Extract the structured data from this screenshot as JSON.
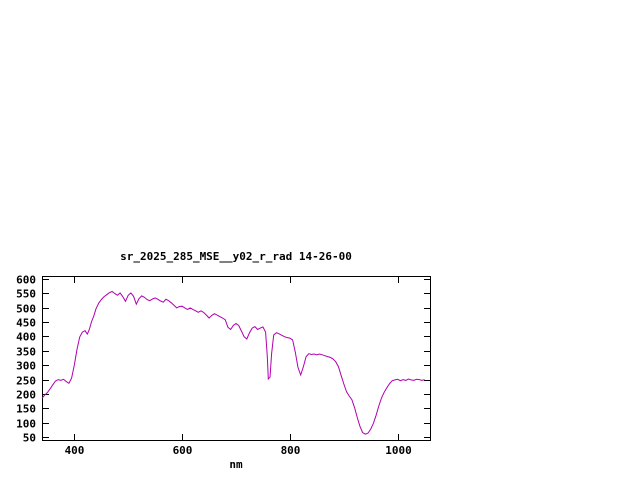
{
  "window": {
    "background_color": "#ffffff"
  },
  "chart_data": {
    "type": "line",
    "title": "sr_2025_285_MSE__y02_r_rad 14-26-00",
    "xlabel": "nm",
    "ylabel": "",
    "xlim": [
      340,
      1060
    ],
    "ylim": [
      40,
      610
    ],
    "xticks": [
      400,
      600,
      800,
      1000
    ],
    "yticks": [
      50,
      100,
      150,
      200,
      250,
      300,
      350,
      400,
      450,
      500,
      550,
      600
    ],
    "grid": false,
    "legend": "none",
    "line_color": "#b000b0",
    "axis_color": "#000000",
    "points": [
      [
        340,
        185
      ],
      [
        345,
        196
      ],
      [
        350,
        205
      ],
      [
        355,
        218
      ],
      [
        360,
        232
      ],
      [
        365,
        245
      ],
      [
        370,
        250
      ],
      [
        375,
        247
      ],
      [
        380,
        251
      ],
      [
        385,
        243
      ],
      [
        390,
        237
      ],
      [
        395,
        255
      ],
      [
        400,
        300
      ],
      [
        405,
        355
      ],
      [
        410,
        398
      ],
      [
        415,
        415
      ],
      [
        420,
        420
      ],
      [
        424,
        408
      ],
      [
        428,
        425
      ],
      [
        432,
        452
      ],
      [
        436,
        470
      ],
      [
        440,
        495
      ],
      [
        445,
        515
      ],
      [
        450,
        528
      ],
      [
        455,
        538
      ],
      [
        460,
        545
      ],
      [
        465,
        552
      ],
      [
        470,
        556
      ],
      [
        475,
        549
      ],
      [
        480,
        543
      ],
      [
        485,
        551
      ],
      [
        490,
        538
      ],
      [
        495,
        522
      ],
      [
        500,
        543
      ],
      [
        505,
        551
      ],
      [
        510,
        539
      ],
      [
        515,
        512
      ],
      [
        520,
        531
      ],
      [
        525,
        541
      ],
      [
        530,
        536
      ],
      [
        535,
        528
      ],
      [
        540,
        524
      ],
      [
        545,
        530
      ],
      [
        550,
        534
      ],
      [
        555,
        529
      ],
      [
        560,
        523
      ],
      [
        565,
        519
      ],
      [
        570,
        529
      ],
      [
        575,
        524
      ],
      [
        580,
        517
      ],
      [
        585,
        508
      ],
      [
        590,
        499
      ],
      [
        595,
        504
      ],
      [
        600,
        505
      ],
      [
        605,
        499
      ],
      [
        610,
        494
      ],
      [
        615,
        499
      ],
      [
        620,
        494
      ],
      [
        625,
        489
      ],
      [
        630,
        484
      ],
      [
        635,
        489
      ],
      [
        640,
        483
      ],
      [
        645,
        474
      ],
      [
        650,
        464
      ],
      [
        655,
        473
      ],
      [
        660,
        479
      ],
      [
        665,
        474
      ],
      [
        670,
        469
      ],
      [
        675,
        464
      ],
      [
        680,
        458
      ],
      [
        685,
        432
      ],
      [
        690,
        424
      ],
      [
        695,
        438
      ],
      [
        700,
        445
      ],
      [
        705,
        438
      ],
      [
        710,
        419
      ],
      [
        715,
        399
      ],
      [
        720,
        391
      ],
      [
        725,
        413
      ],
      [
        730,
        429
      ],
      [
        735,
        434
      ],
      [
        740,
        424
      ],
      [
        745,
        429
      ],
      [
        750,
        433
      ],
      [
        755,
        415
      ],
      [
        758,
        330
      ],
      [
        760,
        252
      ],
      [
        763,
        258
      ],
      [
        766,
        340
      ],
      [
        770,
        405
      ],
      [
        775,
        413
      ],
      [
        780,
        409
      ],
      [
        785,
        404
      ],
      [
        790,
        399
      ],
      [
        795,
        396
      ],
      [
        800,
        394
      ],
      [
        805,
        388
      ],
      [
        810,
        345
      ],
      [
        815,
        292
      ],
      [
        820,
        266
      ],
      [
        825,
        295
      ],
      [
        830,
        330
      ],
      [
        835,
        340
      ],
      [
        840,
        337
      ],
      [
        845,
        339
      ],
      [
        850,
        336
      ],
      [
        855,
        339
      ],
      [
        860,
        336
      ],
      [
        865,
        333
      ],
      [
        870,
        330
      ],
      [
        875,
        327
      ],
      [
        880,
        322
      ],
      [
        885,
        312
      ],
      [
        890,
        295
      ],
      [
        895,
        265
      ],
      [
        900,
        235
      ],
      [
        905,
        208
      ],
      [
        910,
        193
      ],
      [
        915,
        180
      ],
      [
        920,
        152
      ],
      [
        925,
        118
      ],
      [
        930,
        88
      ],
      [
        935,
        66
      ],
      [
        940,
        60
      ],
      [
        945,
        64
      ],
      [
        950,
        78
      ],
      [
        955,
        98
      ],
      [
        960,
        126
      ],
      [
        965,
        158
      ],
      [
        970,
        186
      ],
      [
        975,
        206
      ],
      [
        980,
        222
      ],
      [
        985,
        236
      ],
      [
        990,
        246
      ],
      [
        995,
        249
      ],
      [
        1000,
        251
      ],
      [
        1005,
        246
      ],
      [
        1010,
        250
      ],
      [
        1015,
        247
      ],
      [
        1020,
        252
      ],
      [
        1025,
        249
      ],
      [
        1030,
        247
      ],
      [
        1035,
        251
      ],
      [
        1040,
        250
      ],
      [
        1045,
        247
      ],
      [
        1050,
        250
      ]
    ]
  }
}
